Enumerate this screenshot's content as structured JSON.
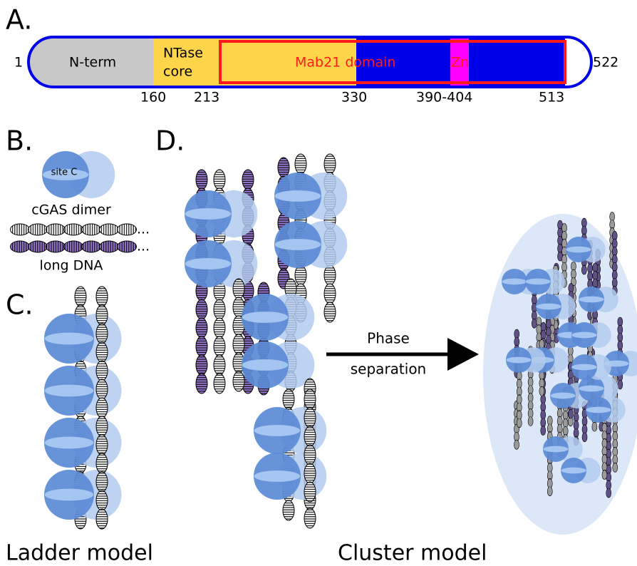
{
  "panel_a": {
    "label": "A.",
    "start": "1",
    "end": "522",
    "domains": {
      "nterm": "N-term",
      "ntase_1": "NTase",
      "ntase_2": "core",
      "mab21": "Mab21 domain",
      "zn": "Zn"
    },
    "positions": [
      "160",
      "213",
      "330",
      "390-404",
      "513"
    ]
  },
  "panel_b": {
    "label": "B.",
    "site": "site C",
    "dimer": "cGAS dimer",
    "ellipsis_1": "...",
    "ellipsis_2": "...",
    "dna": "long DNA"
  },
  "panel_c": {
    "label": "C.",
    "caption": "Ladder model"
  },
  "panel_d": {
    "label": "D.",
    "arrow_1": "Phase",
    "arrow_2": "separation",
    "caption": "Cluster model"
  }
}
